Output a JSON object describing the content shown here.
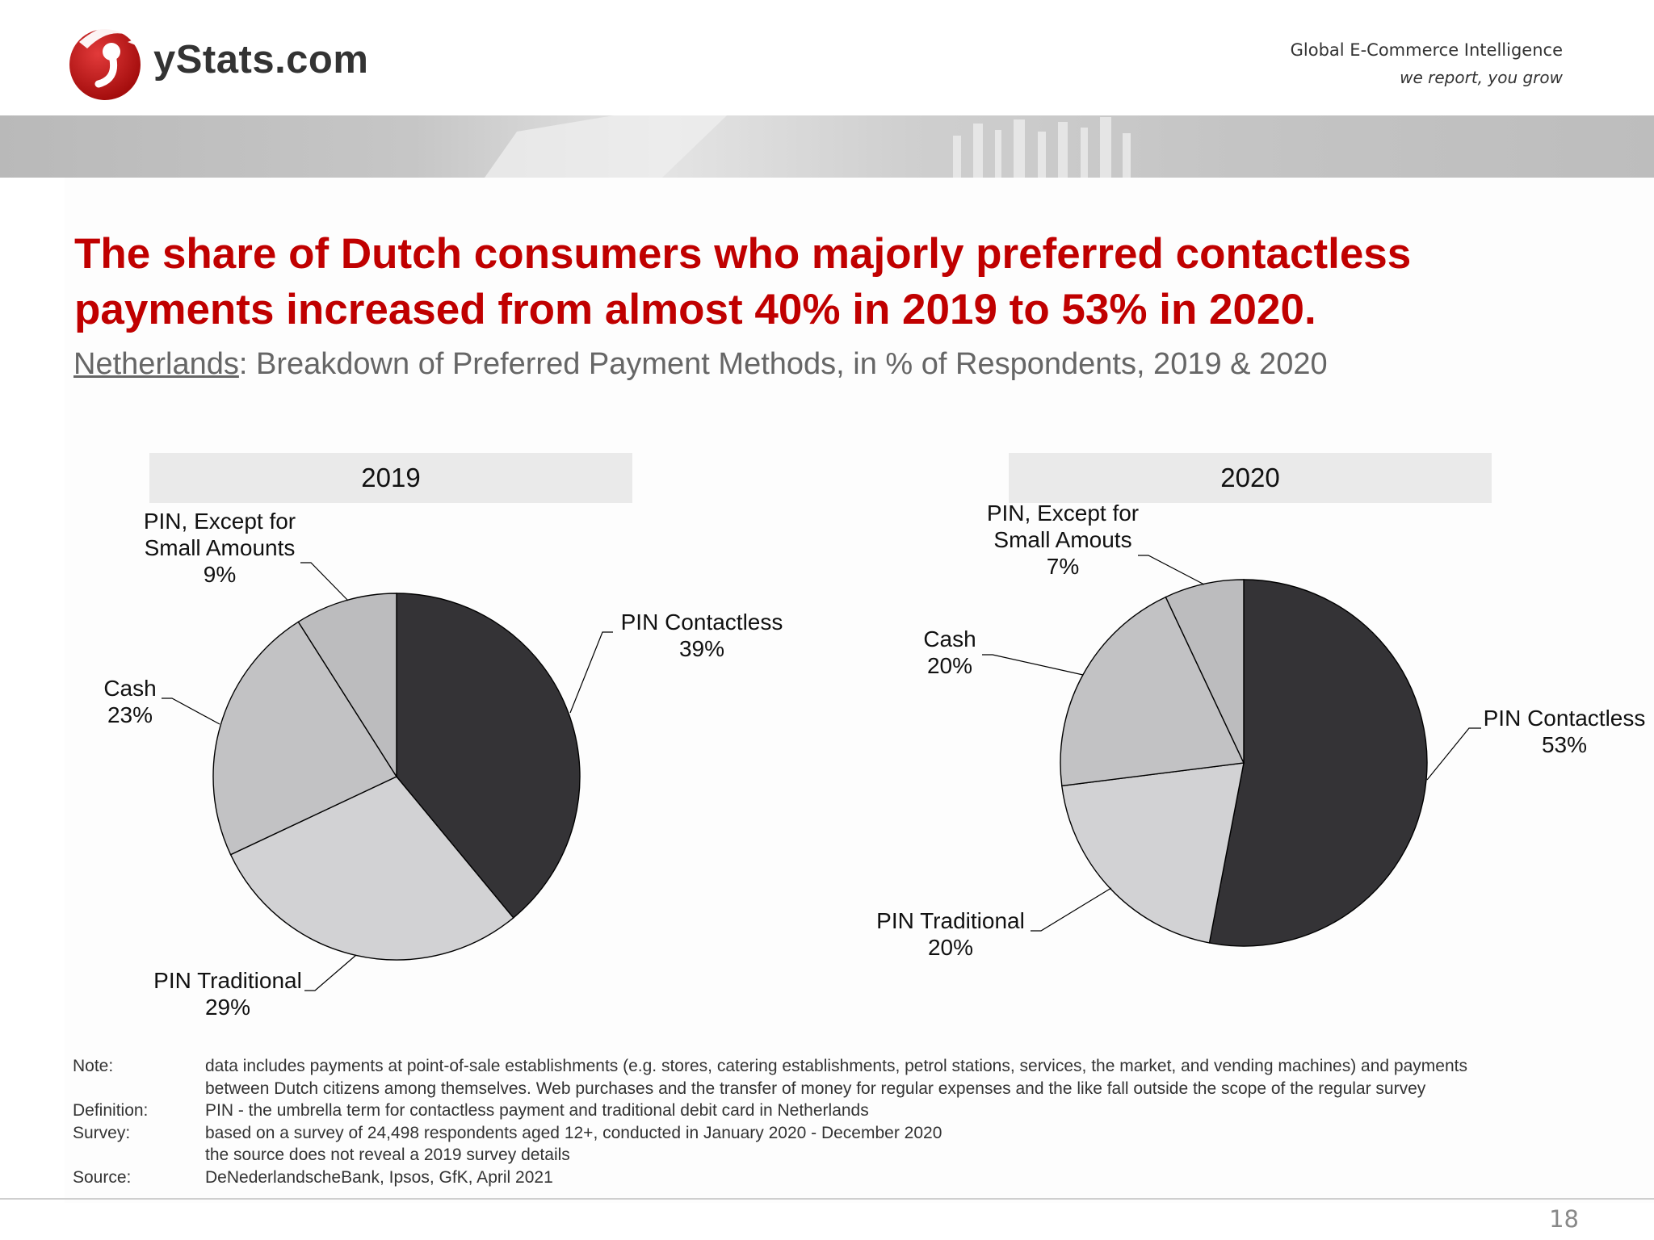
{
  "brand": {
    "logo_text": "yStats.com",
    "tagline_line1": "Global E-Commerce Intelligence",
    "tagline_line2": "we report, you grow",
    "accent_color": "#c00000"
  },
  "headline": "The share of Dutch consumers who majorly preferred contactless payments increased from almost 40% in 2019 to 53% in 2020.",
  "subtitle": {
    "country": "Netherlands",
    "text": ": Breakdown of Preferred Payment Methods, in % of Respondents, 2019 & 2020"
  },
  "chart_data": [
    {
      "type": "pie",
      "title": "2019",
      "unit": "%",
      "slices": [
        {
          "label": "PIN Contactless",
          "value": 39,
          "color": "#343336"
        },
        {
          "label": "PIN Traditional",
          "value": 29,
          "color": "#d2d2d4"
        },
        {
          "label": "Cash",
          "value": 23,
          "color": "#c2c2c4"
        },
        {
          "label": "PIN, Except for Small Amounts",
          "value": 9,
          "color": "#bcbcbe"
        }
      ]
    },
    {
      "type": "pie",
      "title": "2020",
      "unit": "%",
      "slices": [
        {
          "label": "PIN Contactless",
          "value": 53,
          "color": "#343336"
        },
        {
          "label": "PIN Traditional",
          "value": 20,
          "color": "#d2d2d4"
        },
        {
          "label": "Cash",
          "value": 20,
          "color": "#c2c2c4"
        },
        {
          "label": "PIN, Except for Small Amouts",
          "value": 7,
          "color": "#bcbcbe"
        }
      ]
    }
  ],
  "notes": [
    {
      "label": "Note:",
      "lines": [
        "data includes payments at point-of-sale establishments (e.g. stores, catering establishments, petrol stations, services, the market, and vending machines) and payments",
        "between Dutch citizens among themselves. Web purchases and the transfer of money for regular expenses and the like fall outside the scope of the regular survey"
      ]
    },
    {
      "label": "Definition:",
      "lines": [
        "PIN -  the umbrella term for contactless payment and traditional debit card in Netherlands"
      ]
    },
    {
      "label": "Survey:",
      "lines": [
        "based on a survey of 24,498 respondents aged 12+, conducted in January 2020 - December 2020",
        "the source does not reveal a 2019 survey details"
      ]
    },
    {
      "label": "Source:",
      "lines": [
        "DeNederlandscheBank, Ipsos, GfK, April 2021"
      ]
    }
  ],
  "page_number": "18"
}
